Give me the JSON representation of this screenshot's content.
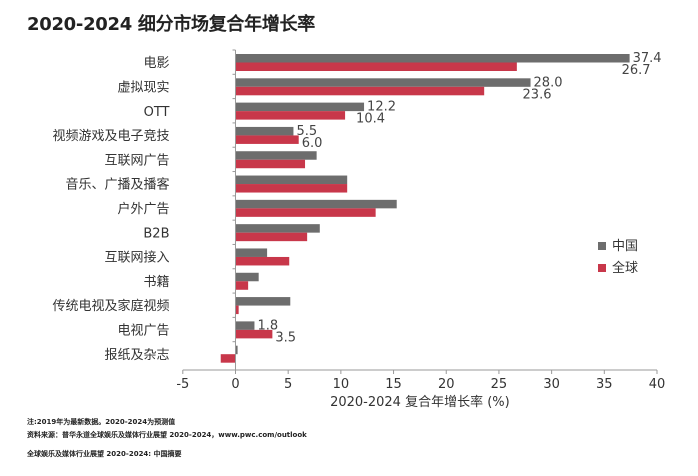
{
  "chart_data": {
    "type": "bar",
    "orientation": "horizontal",
    "title": "2020-2024 细分市场复合年增长率",
    "xlabel": "2020-2024 复合年增长率 (%)",
    "ylabel": "",
    "xlim": [
      -5,
      40
    ],
    "xticks": [
      "-5",
      "0",
      "5",
      "10",
      "15",
      "20",
      "25",
      "30",
      "35",
      "40"
    ],
    "grid": false,
    "legend_position": "right",
    "categories": [
      "电影",
      "虚拟现实",
      "OTT",
      "视频游戏及电子竞技",
      "互联网广告",
      "音乐、广播及播客",
      "户外广告",
      "B2B",
      "互联网接入",
      "书籍",
      "传统电视及家庭视频",
      "电视广告",
      "报纸及杂志"
    ],
    "series": [
      {
        "name": "中国",
        "color": "#6d6d6d",
        "values": [
          37.4,
          28.0,
          12.2,
          5.5,
          7.7,
          10.6,
          15.3,
          8.0,
          3.0,
          2.2,
          5.2,
          1.8,
          0.2
        ]
      },
      {
        "name": "全球",
        "color": "#c8374a",
        "values": [
          26.7,
          23.6,
          10.4,
          6.0,
          6.6,
          10.6,
          13.3,
          6.8,
          5.1,
          1.2,
          0.3,
          3.5,
          -1.4
        ]
      }
    ],
    "data_labels": [
      {
        "category": "电影",
        "china": "37.4",
        "global": "26.7"
      },
      {
        "category": "虚拟现实",
        "china": "28.0",
        "global": "23.6"
      },
      {
        "category": "OTT",
        "china": "12.2",
        "global": "10.4"
      },
      {
        "category": "视频游戏及电子竞技",
        "china": "5.5",
        "global": "6.0"
      },
      {
        "category": "电视广告",
        "china": "1.8",
        "global": "3.5"
      }
    ]
  },
  "notes": {
    "note": "注:2019年为最新数据。2020-2024为预测值",
    "source": "资料来源：普华永道全球娱乐及媒体行业展望 2020-2024，www.pwc.com/outlook",
    "footer": "全球娱乐及媒体行业展望 2020-2024: 中国摘要"
  }
}
